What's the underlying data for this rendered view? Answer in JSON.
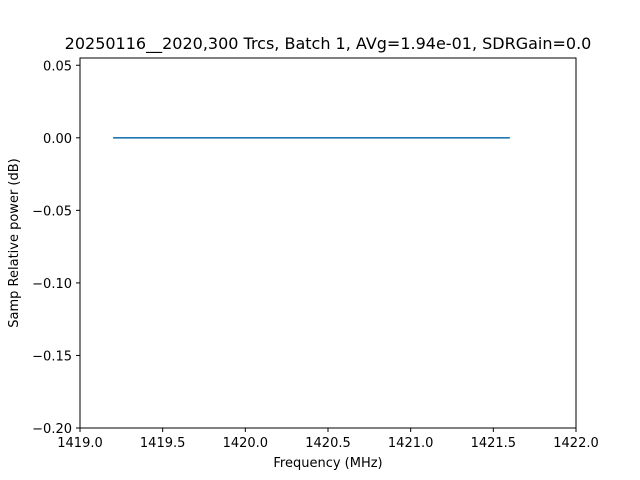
{
  "chart_data": {
    "type": "line",
    "title": "20250116__2020,300 Trcs, Batch 1, AVg=1.94e-01, SDRGain=0.0",
    "xlabel": "Frequency (MHz)",
    "ylabel": "Samp Relative power (dB)",
    "xlim": [
      1419.0,
      1422.0
    ],
    "ylim": [
      -0.2,
      0.055
    ],
    "x_ticks": [
      1419.0,
      1419.5,
      1420.0,
      1420.5,
      1421.0,
      1421.5,
      1422.0
    ],
    "x_tick_labels": [
      "1419.0",
      "1419.5",
      "1420.0",
      "1420.5",
      "1421.0",
      "1421.5",
      "1422.0"
    ],
    "y_ticks": [
      0.05,
      0.0,
      -0.05,
      -0.1,
      -0.15,
      -0.2
    ],
    "y_tick_labels": [
      "0.05",
      "0.00",
      "−0.05",
      "−0.10",
      "−0.15",
      "−0.20"
    ],
    "grid": false,
    "series": [
      {
        "color": "#1f77b4",
        "x": [
          1419.2,
          1421.6
        ],
        "y": [
          0.0,
          0.0
        ]
      }
    ]
  }
}
